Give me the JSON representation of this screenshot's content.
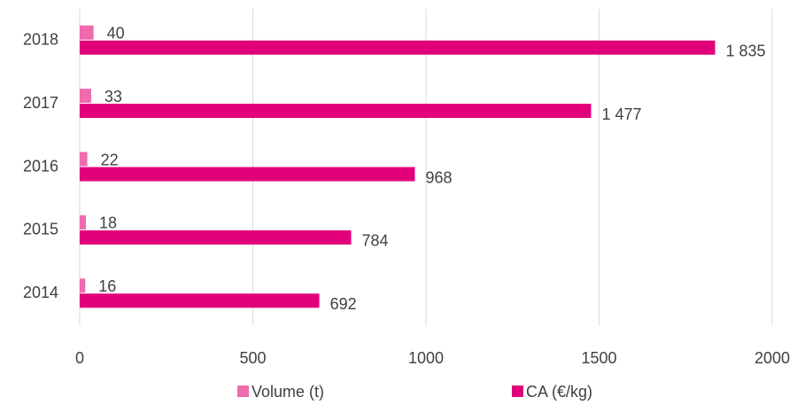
{
  "chart_data": {
    "type": "bar",
    "orientation": "horizontal",
    "categories": [
      "2014",
      "2015",
      "2016",
      "2017",
      "2018"
    ],
    "series": [
      {
        "name": "Volume (t)",
        "color": "#f06aae",
        "values": [
          16,
          18,
          22,
          33,
          40
        ]
      },
      {
        "name": "CA (€/kg)",
        "color": "#e2007a",
        "values": [
          692,
          784,
          968,
          1477,
          1835
        ],
        "value_labels": [
          "692",
          "784",
          "968",
          "1 477",
          "1 835"
        ]
      }
    ],
    "xlim": [
      0,
      2000
    ],
    "xticks": [
      0,
      500,
      1000,
      1500,
      2000
    ],
    "grid": true,
    "legend": "bottom"
  }
}
